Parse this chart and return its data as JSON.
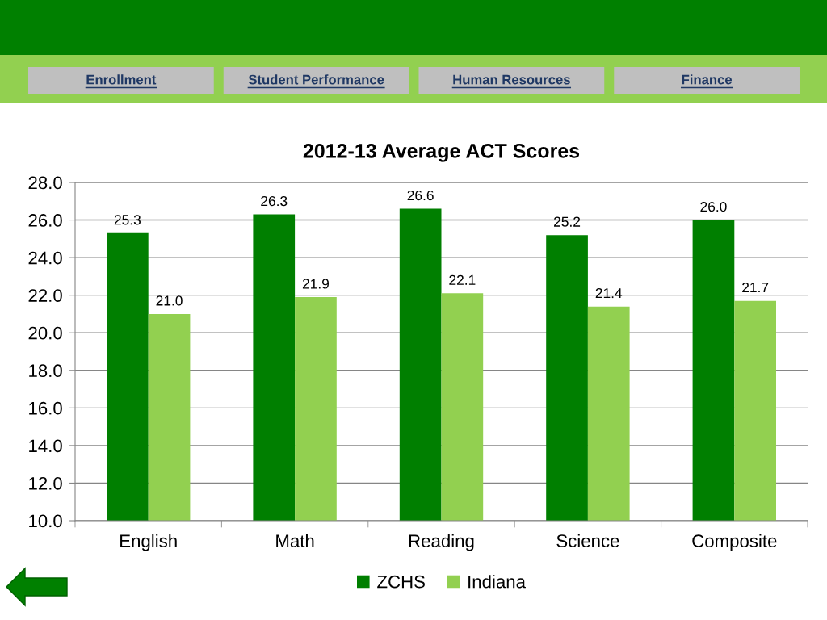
{
  "chart_data": {
    "type": "bar",
    "title": "2012-13 Average ACT Scores",
    "categories": [
      "English",
      "Math",
      "Reading",
      "Science",
      "Composite"
    ],
    "series": [
      {
        "name": "ZCHS",
        "color": "#007f00",
        "values": [
          25.3,
          26.3,
          26.6,
          25.2,
          26.0
        ],
        "value_labels": [
          "25.3",
          "26.3",
          "26.6",
          "25.2",
          "26.0"
        ]
      },
      {
        "name": "Indiana",
        "color": "#92d050",
        "values": [
          21.0,
          21.9,
          22.1,
          21.4,
          21.7
        ],
        "value_labels": [
          "21.0",
          "21.9",
          "22.1",
          "21.4",
          "21.7"
        ]
      }
    ],
    "ylim": [
      10,
      28
    ],
    "yticks": [
      {
        "value": 10,
        "label": "10.0"
      },
      {
        "value": 12,
        "label": "12.0"
      },
      {
        "value": 14,
        "label": "14.0"
      },
      {
        "value": 16,
        "label": "16.0"
      },
      {
        "value": 18,
        "label": "18.0"
      },
      {
        "value": 20,
        "label": "20.0"
      },
      {
        "value": 22,
        "label": "22.0"
      },
      {
        "value": 24,
        "label": "24.0"
      },
      {
        "value": 26,
        "label": "26.0"
      },
      {
        "value": 28,
        "label": "28.0"
      }
    ],
    "grid": "y",
    "legend": "bottom",
    "annotations": [
      "Enrollment",
      "Student Performance",
      "Human Resources",
      "Finance"
    ]
  }
}
